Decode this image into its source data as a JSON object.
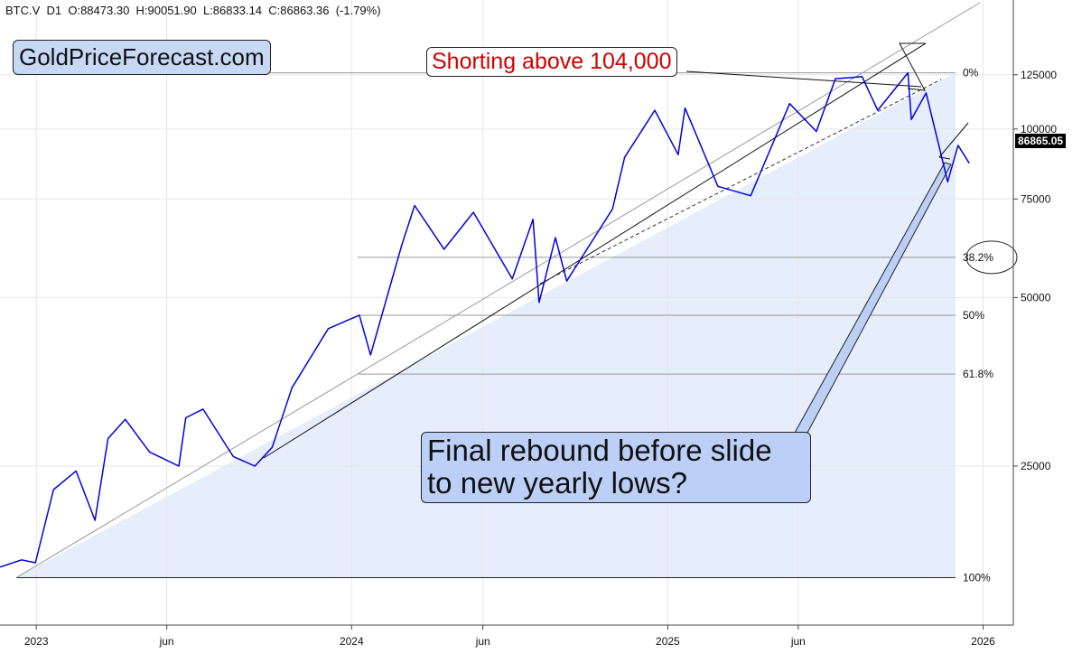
{
  "header": {
    "ohlc_text": "BTC.V  D1  O:88473.30  H:90051.90  L:86833.14  C:86863.36  (-1.79%)"
  },
  "branding": {
    "logo_text": "GoldPriceForecast.com"
  },
  "annotations": {
    "shorting": "Shorting above 104,000",
    "final_rebound": "Final rebound before slide to new yearly lows?"
  },
  "price_tag": "86865.05",
  "colors": {
    "price_line": "#0000e6",
    "fib_fill": "#dbe6fa",
    "callout_blue": "#bcd0f7",
    "callout_red_text": "#d10000",
    "grid": "#e6e6e6"
  },
  "chart_data": {
    "type": "line",
    "series": [
      {
        "values": [
          [
            "2022-11-20",
            16500
          ],
          [
            "2022-12-15",
            17000
          ],
          [
            "2022-12-31",
            16800
          ],
          [
            "2023-01-21",
            22700
          ],
          [
            "2023-02-16",
            24500
          ],
          [
            "2023-03-10",
            20000
          ],
          [
            "2023-03-25",
            28000
          ],
          [
            "2023-04-14",
            30300
          ],
          [
            "2023-05-12",
            26500
          ],
          [
            "2023-06-15",
            25000
          ],
          [
            "2023-06-23",
            30500
          ],
          [
            "2023-07-13",
            31600
          ],
          [
            "2023-08-17",
            26000
          ],
          [
            "2023-09-11",
            25000
          ],
          [
            "2023-10-01",
            27000
          ],
          [
            "2023-10-24",
            34500
          ],
          [
            "2023-12-05",
            44000
          ],
          [
            "2024-01-10",
            46500
          ],
          [
            "2024-01-23",
            39500
          ],
          [
            "2024-02-28",
            62000
          ],
          [
            "2024-03-14",
            73000
          ],
          [
            "2024-04-17",
            61000
          ],
          [
            "2024-05-21",
            71000
          ],
          [
            "2024-07-05",
            54000
          ],
          [
            "2024-07-29",
            69000
          ],
          [
            "2024-08-05",
            49000
          ],
          [
            "2024-08-24",
            64000
          ],
          [
            "2024-09-06",
            53500
          ],
          [
            "2024-10-29",
            72000
          ],
          [
            "2024-11-12",
            89000
          ],
          [
            "2024-12-17",
            108000
          ],
          [
            "2025-01-13",
            90000
          ],
          [
            "2025-01-21",
            109000
          ],
          [
            "2025-02-28",
            79000
          ],
          [
            "2025-04-07",
            76000
          ],
          [
            "2025-05-22",
            111000
          ],
          [
            "2025-06-22",
            99000
          ],
          [
            "2025-07-14",
            123000
          ],
          [
            "2025-08-14",
            124000
          ],
          [
            "2025-09-01",
            108000
          ],
          [
            "2025-10-06",
            126000
          ],
          [
            "2025-10-10",
            104000
          ],
          [
            "2025-10-27",
            116000
          ],
          [
            "2025-11-21",
            80500
          ],
          [
            "2025-12-03",
            93500
          ],
          [
            "2025-12-16",
            86863
          ]
        ]
      }
    ],
    "x_tick_labels": [
      "2023",
      "jun",
      "2024",
      "jun",
      "2025",
      "jun",
      "2026"
    ],
    "x_tick_dates": [
      "2023-01-01",
      "2023-06-01",
      "2024-01-01",
      "2024-06-01",
      "2025-01-01",
      "2025-06-01",
      "2026-01-01"
    ],
    "y_tick_labels": [
      "125000",
      "100000",
      "75000",
      "50000",
      "25000"
    ],
    "y_ticks": [
      125000,
      100000,
      75000,
      50000,
      25000
    ],
    "y_scale": "log",
    "x_range": [
      "2022-11-20",
      "2026-02-05"
    ],
    "y_range": [
      13000,
      170000
    ],
    "grid": true,
    "fib_levels": [
      {
        "label": "0%",
        "value": 126000
      },
      {
        "label": "38.2%",
        "value": 59000
      },
      {
        "label": "50%",
        "value": 46500
      },
      {
        "label": "61.8%",
        "value": 36500
      },
      {
        "label": "100%",
        "value": 15800
      }
    ]
  }
}
